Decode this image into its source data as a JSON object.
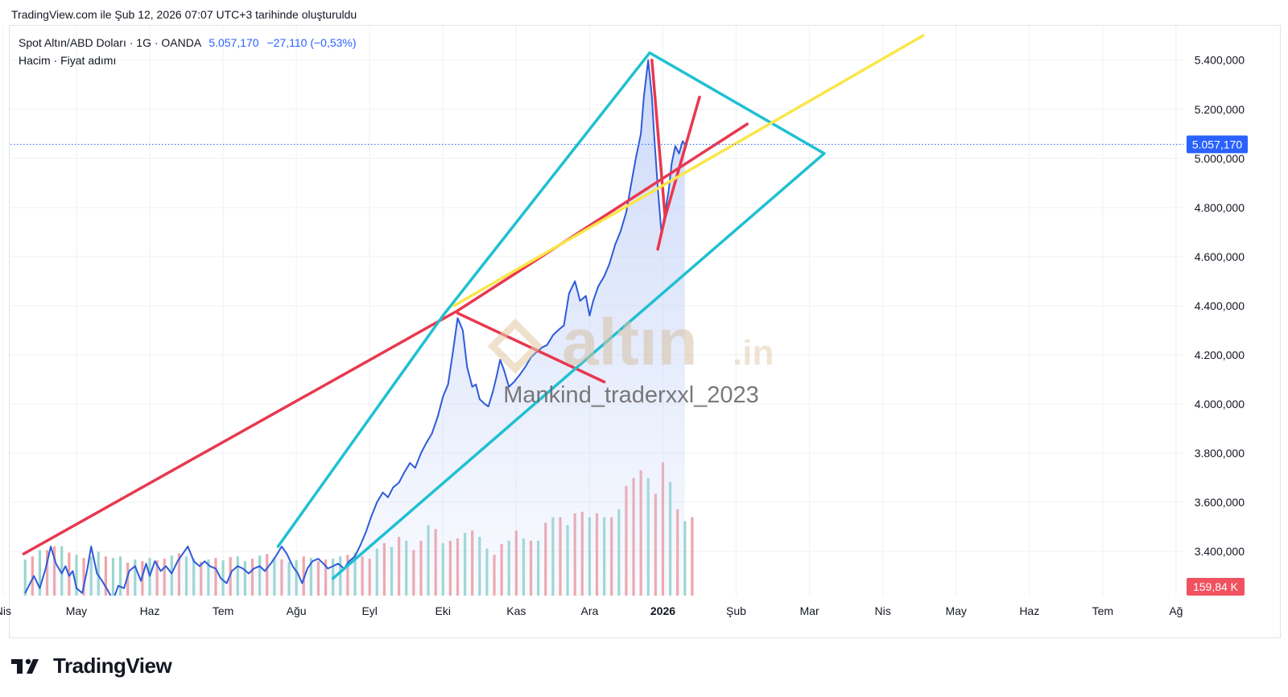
{
  "caption": "TradingView.com ile Şub 12, 2026 07:07 UTC+3 tarihinde oluşturuldu",
  "legend": {
    "symbol": "Spot Altın/ABD Doları · 1G · OANDA",
    "price": "5.057,170",
    "change": "−27,110 (−0,53%)",
    "indicators": "Hacim · Fiyat adımı"
  },
  "watermark": {
    "logo_text": "altın",
    "logo_suffix": ".in",
    "author": "Mankind_traderxxl_2023"
  },
  "footer": {
    "brand": "TradingView"
  },
  "colors": {
    "price_line": "#2f5bd9",
    "area_fill": "#c8d6f8",
    "vol_up": "#9ad6cf",
    "vol_down": "#f1a3a7",
    "red_line": "#e8384f",
    "cyan_line": "#1fc0d2",
    "yellow_line": "#f9e649",
    "grid": "#eef0f3",
    "last_price_tag": "#2962ff",
    "volume_tag": "#f0525f"
  },
  "chart_data": {
    "type": "line",
    "title": "Spot Altın/ABD Doları · 1G · OANDA",
    "price_scale": {
      "ticks": [
        "5.400,000",
        "5.200,000",
        "5.000,000",
        "4.800,000",
        "4.600,000",
        "4.400,000",
        "4.200,000",
        "4.000,000",
        "3.800,000",
        "3.600,000",
        "3.400,000"
      ],
      "tick_values": [
        5400,
        5200,
        5000,
        4800,
        4600,
        4400,
        4200,
        4000,
        3800,
        3600,
        3400
      ],
      "ylim": [
        3220,
        5540
      ]
    },
    "time_axis": {
      "labels": [
        "Nis",
        "May",
        "Haz",
        "Tem",
        "Ağu",
        "Eyl",
        "Eki",
        "Kas",
        "Ara",
        "2026",
        "Şub",
        "Mar",
        "Nis",
        "May",
        "Haz",
        "Tem",
        "Ağ"
      ],
      "bold": [
        "2026"
      ],
      "label_months": [
        0,
        1,
        2,
        3,
        4,
        5,
        6,
        7,
        8,
        9,
        10,
        11,
        12,
        13,
        14,
        15,
        16
      ],
      "xlim": [
        0.1,
        16.1
      ]
    },
    "last_price_label": "5.057,170",
    "volume_label": "159,84 K",
    "grid": true,
    "series": [
      {
        "name": "Spot Altın/ABD Doları",
        "unit": "USD",
        "x_unit": "months since Nis",
        "points": [
          [
            0.3,
            3230
          ],
          [
            0.42,
            3300
          ],
          [
            0.5,
            3250
          ],
          [
            0.58,
            3330
          ],
          [
            0.65,
            3420
          ],
          [
            0.72,
            3350
          ],
          [
            0.8,
            3310
          ],
          [
            0.85,
            3340
          ],
          [
            0.9,
            3300
          ],
          [
            0.95,
            3320
          ],
          [
            1.0,
            3250
          ],
          [
            1.08,
            3230
          ],
          [
            1.15,
            3330
          ],
          [
            1.2,
            3420
          ],
          [
            1.28,
            3310
          ],
          [
            1.35,
            3280
          ],
          [
            1.43,
            3240
          ],
          [
            1.5,
            3200
          ],
          [
            1.57,
            3260
          ],
          [
            1.65,
            3250
          ],
          [
            1.72,
            3320
          ],
          [
            1.8,
            3340
          ],
          [
            1.88,
            3280
          ],
          [
            1.95,
            3350
          ],
          [
            2.0,
            3300
          ],
          [
            2.07,
            3360
          ],
          [
            2.15,
            3320
          ],
          [
            2.22,
            3340
          ],
          [
            2.3,
            3310
          ],
          [
            2.38,
            3360
          ],
          [
            2.45,
            3390
          ],
          [
            2.52,
            3420
          ],
          [
            2.6,
            3360
          ],
          [
            2.68,
            3340
          ],
          [
            2.75,
            3360
          ],
          [
            2.82,
            3340
          ],
          [
            2.9,
            3330
          ],
          [
            2.97,
            3290
          ],
          [
            3.05,
            3270
          ],
          [
            3.12,
            3320
          ],
          [
            3.2,
            3340
          ],
          [
            3.27,
            3330
          ],
          [
            3.35,
            3310
          ],
          [
            3.42,
            3330
          ],
          [
            3.5,
            3340
          ],
          [
            3.57,
            3320
          ],
          [
            3.65,
            3350
          ],
          [
            3.72,
            3380
          ],
          [
            3.8,
            3420
          ],
          [
            3.87,
            3390
          ],
          [
            3.95,
            3340
          ],
          [
            4.02,
            3310
          ],
          [
            4.08,
            3270
          ],
          [
            4.15,
            3330
          ],
          [
            4.22,
            3360
          ],
          [
            4.3,
            3370
          ],
          [
            4.37,
            3350
          ],
          [
            4.43,
            3330
          ],
          [
            4.5,
            3340
          ],
          [
            4.57,
            3350
          ],
          [
            4.65,
            3330
          ],
          [
            4.72,
            3360
          ],
          [
            4.8,
            3380
          ],
          [
            4.88,
            3430
          ],
          [
            4.95,
            3480
          ],
          [
            5.02,
            3540
          ],
          [
            5.1,
            3600
          ],
          [
            5.18,
            3640
          ],
          [
            5.25,
            3620
          ],
          [
            5.32,
            3660
          ],
          [
            5.4,
            3680
          ],
          [
            5.47,
            3720
          ],
          [
            5.55,
            3760
          ],
          [
            5.62,
            3740
          ],
          [
            5.7,
            3800
          ],
          [
            5.77,
            3840
          ],
          [
            5.85,
            3880
          ],
          [
            5.93,
            3950
          ],
          [
            6.0,
            4030
          ],
          [
            6.07,
            4080
          ],
          [
            6.13,
            4200
          ],
          [
            6.2,
            4350
          ],
          [
            6.27,
            4300
          ],
          [
            6.33,
            4150
          ],
          [
            6.4,
            4070
          ],
          [
            6.45,
            4080
          ],
          [
            6.5,
            4020
          ],
          [
            6.57,
            4000
          ],
          [
            6.62,
            3990
          ],
          [
            6.68,
            4050
          ],
          [
            6.73,
            4110
          ],
          [
            6.78,
            4180
          ],
          [
            6.83,
            4140
          ],
          [
            6.9,
            4070
          ],
          [
            6.97,
            4090
          ],
          [
            7.05,
            4120
          ],
          [
            7.12,
            4150
          ],
          [
            7.2,
            4190
          ],
          [
            7.27,
            4210
          ],
          [
            7.35,
            4230
          ],
          [
            7.42,
            4240
          ],
          [
            7.5,
            4280
          ],
          [
            7.57,
            4300
          ],
          [
            7.65,
            4320
          ],
          [
            7.72,
            4450
          ],
          [
            7.8,
            4500
          ],
          [
            7.87,
            4420
          ],
          [
            7.95,
            4440
          ],
          [
            8.0,
            4360
          ],
          [
            8.05,
            4420
          ],
          [
            8.12,
            4480
          ],
          [
            8.2,
            4520
          ],
          [
            8.27,
            4570
          ],
          [
            8.35,
            4650
          ],
          [
            8.42,
            4700
          ],
          [
            8.5,
            4780
          ],
          [
            8.57,
            4900
          ],
          [
            8.63,
            5000
          ],
          [
            8.7,
            5100
          ],
          [
            8.74,
            5250
          ],
          [
            8.8,
            5400
          ],
          [
            8.85,
            5250
          ],
          [
            8.88,
            5100
          ],
          [
            8.93,
            4880
          ],
          [
            8.98,
            4700
          ],
          [
            9.03,
            4780
          ],
          [
            9.08,
            4870
          ],
          [
            9.12,
            4980
          ],
          [
            9.17,
            5050
          ],
          [
            9.22,
            5020
          ],
          [
            9.27,
            5070
          ],
          [
            9.3,
            5057.17
          ]
        ]
      },
      {
        "name": "Hacim",
        "unit": "K",
        "x_step": 0.1,
        "x_start": 0.0,
        "note_colors": "up/down per bar",
        "values": [
          46,
          50,
          58,
          58,
          63,
          63,
          55,
          52,
          48,
          50,
          56,
          50,
          48,
          50,
          42,
          46,
          44,
          48,
          45,
          47,
          51,
          54,
          50,
          47,
          43,
          46,
          48,
          45,
          49,
          50,
          44,
          47,
          51,
          53,
          49,
          46,
          43,
          45,
          50,
          48,
          44,
          46,
          47,
          50,
          52,
          55,
          50,
          47,
          60,
          67,
          62,
          75,
          70,
          58,
          70,
          90,
          85,
          67,
          70,
          73,
          80,
          83,
          75,
          60,
          52,
          66,
          70,
          83,
          73,
          70,
          70,
          93,
          100,
          100,
          90,
          105,
          107,
          100,
          105,
          100,
          100,
          110,
          140,
          150,
          160,
          150,
          130,
          170,
          145,
          110,
          95,
          100
        ],
        "down_flags": [
          0,
          1,
          0,
          1,
          1,
          0,
          1,
          0,
          1,
          0,
          0,
          1,
          0,
          0,
          1,
          0,
          1,
          0,
          1,
          1,
          0,
          1,
          0,
          0,
          1,
          0,
          1,
          0,
          1,
          0,
          0,
          1,
          0,
          1,
          0,
          1,
          0,
          0,
          1,
          0,
          1,
          1,
          0,
          0,
          1,
          0,
          1,
          1,
          0,
          1,
          0,
          1,
          0,
          1,
          1,
          0,
          1,
          0,
          1,
          1,
          0,
          1,
          0,
          0,
          1,
          1,
          0,
          1,
          0,
          1,
          0,
          1,
          0,
          1,
          0,
          1,
          1,
          0,
          1,
          0,
          1,
          0,
          1,
          1,
          1,
          0,
          1,
          1,
          0,
          1,
          0,
          1
        ]
      }
    ],
    "drawings": [
      {
        "name": "red-support-line",
        "color": "red",
        "points": [
          [
            0.28,
            3390
          ],
          [
            6.2,
            4380
          ],
          [
            10.15,
            5140
          ]
        ]
      },
      {
        "name": "red-short-down",
        "color": "red",
        "points": [
          [
            6.2,
            4370
          ],
          [
            8.2,
            4090
          ]
        ]
      },
      {
        "name": "red-v-left",
        "color": "red",
        "points": [
          [
            8.85,
            5400
          ],
          [
            9.03,
            4760
          ],
          [
            9.5,
            5250
          ]
        ]
      },
      {
        "name": "red-v-bottom",
        "color": "red",
        "points": [
          [
            8.93,
            4630
          ],
          [
            9.03,
            4760
          ]
        ]
      },
      {
        "name": "cyan-channel-upper",
        "color": "cyan",
        "points": [
          [
            3.75,
            3420
          ],
          [
            6.0,
            4360
          ],
          [
            8.82,
            5430
          ],
          [
            11.2,
            5020
          ]
        ]
      },
      {
        "name": "cyan-channel-lower",
        "color": "cyan",
        "points": [
          [
            4.5,
            3290
          ],
          [
            11.2,
            5020
          ]
        ]
      },
      {
        "name": "yellow-trend",
        "color": "yellow",
        "points": [
          [
            6.15,
            4400
          ],
          [
            12.55,
            5500
          ]
        ]
      }
    ]
  }
}
